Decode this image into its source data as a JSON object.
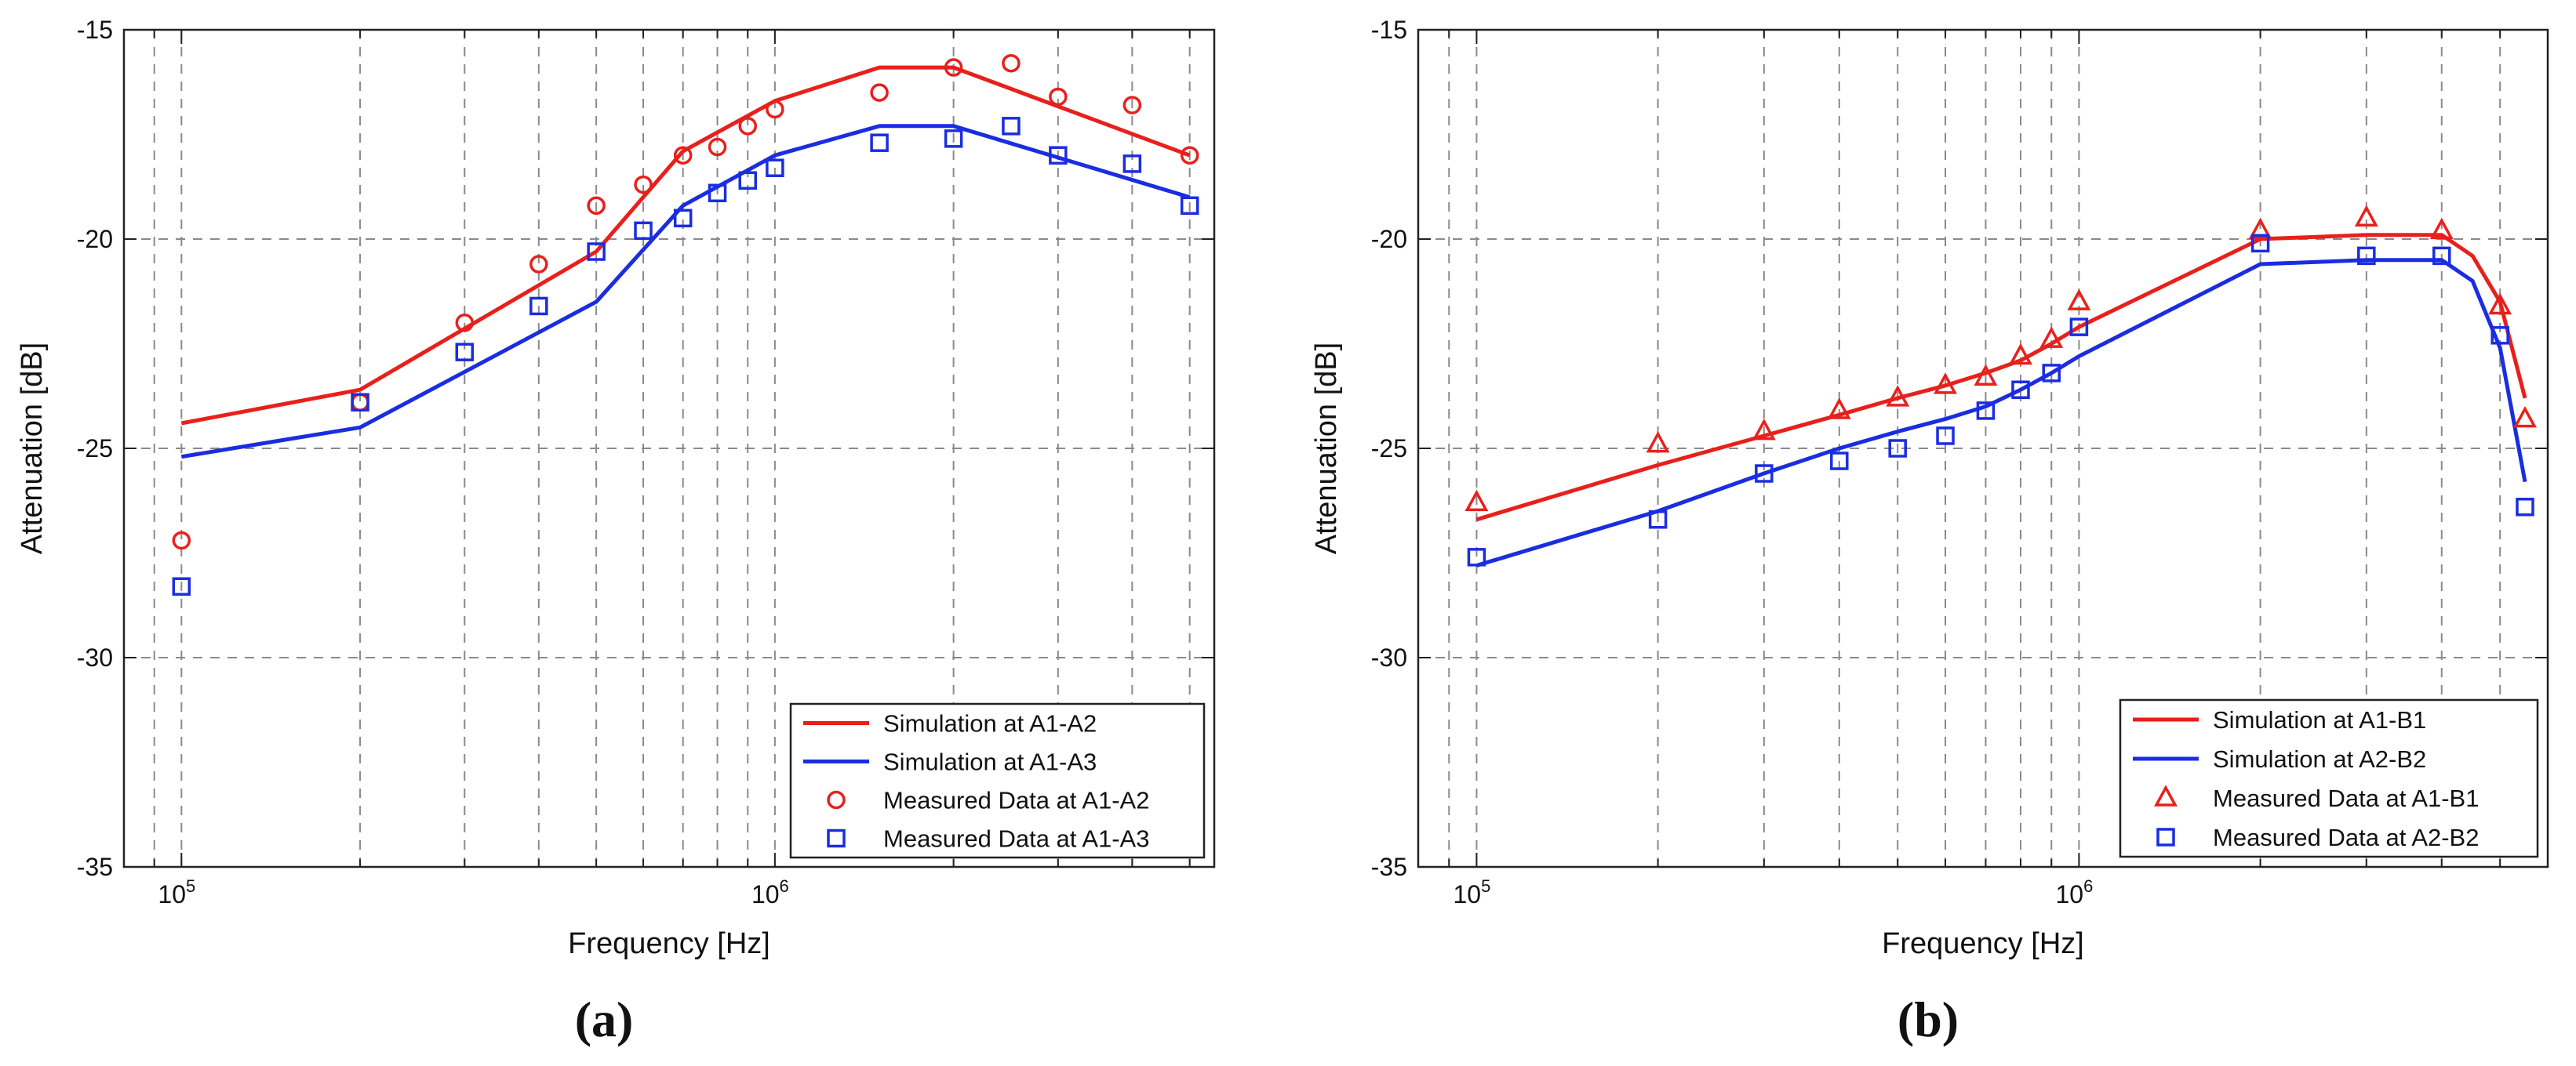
{
  "chart_data": [
    {
      "panel_label": "(a)",
      "type": "line",
      "xscale": "log",
      "xlabel": "Frequency [Hz]",
      "ylabel": "Attenuation [dB]",
      "xlim": [
        80000,
        5500000
      ],
      "ylim": [
        -35,
        -15
      ],
      "yticks": [
        -35,
        -30,
        -25,
        -20,
        -15
      ],
      "xticks": [
        {
          "base": "10",
          "exp": "5",
          "value": 100000
        },
        {
          "base": "10",
          "exp": "6",
          "value": 1000000
        }
      ],
      "grid": true,
      "legend_position": "bottom-right",
      "series": [
        {
          "name": "Simulation at A1-A2",
          "kind": "line",
          "color": "#e8201c",
          "x": [
            100000,
            200000,
            500000,
            700000,
            1000000,
            1500000,
            2000000,
            5000000
          ],
          "y": [
            -24.4,
            -23.6,
            -20.3,
            -17.9,
            -16.7,
            -15.9,
            -15.9,
            -18.0
          ]
        },
        {
          "name": "Simulation at A1-A3",
          "kind": "line",
          "color": "#1a2de0",
          "x": [
            100000,
            200000,
            500000,
            700000,
            1000000,
            1500000,
            2000000,
            5000000
          ],
          "y": [
            -25.2,
            -24.5,
            -21.5,
            -19.2,
            -18.0,
            -17.3,
            -17.3,
            -19.0
          ]
        },
        {
          "name": "Measured Data at A1-A2",
          "kind": "marker",
          "marker": "circle",
          "color": "#e8201c",
          "x": [
            100000,
            200000,
            300000,
            400000,
            500000,
            600000,
            700000,
            800000,
            900000,
            1000000,
            1500000,
            2000000,
            2500000,
            3000000,
            4000000,
            5000000
          ],
          "y": [
            -27.2,
            -23.9,
            -22.0,
            -20.6,
            -19.2,
            -18.7,
            -18.0,
            -17.8,
            -17.3,
            -16.9,
            -16.5,
            -15.9,
            -15.8,
            -16.6,
            -16.8,
            -18.0
          ]
        },
        {
          "name": "Measured Data at A1-A3",
          "kind": "marker",
          "marker": "square",
          "color": "#1a2de0",
          "x": [
            100000,
            200000,
            300000,
            400000,
            500000,
            600000,
            700000,
            800000,
            900000,
            1000000,
            1500000,
            2000000,
            2500000,
            3000000,
            4000000,
            5000000
          ],
          "y": [
            -28.3,
            -23.9,
            -22.7,
            -21.6,
            -20.3,
            -19.8,
            -19.5,
            -18.9,
            -18.6,
            -18.3,
            -17.7,
            -17.6,
            -17.3,
            -18.0,
            -18.2,
            -19.2
          ]
        }
      ]
    },
    {
      "panel_label": "(b)",
      "type": "line",
      "xscale": "log",
      "xlabel": "Frequency [Hz]",
      "ylabel": "Attenuation [dB]",
      "xlim": [
        80000,
        6000000
      ],
      "ylim": [
        -35,
        -15
      ],
      "yticks": [
        -35,
        -30,
        -25,
        -20,
        -15
      ],
      "xticks": [
        {
          "base": "10",
          "exp": "5",
          "value": 100000
        },
        {
          "base": "10",
          "exp": "6",
          "value": 1000000
        }
      ],
      "grid": true,
      "legend_position": "bottom-right",
      "series": [
        {
          "name": "Simulation at A1-B1",
          "kind": "line",
          "color": "#e8201c",
          "x": [
            100000,
            200000,
            300000,
            400000,
            500000,
            600000,
            700000,
            800000,
            900000,
            1000000,
            2000000,
            3000000,
            4000000,
            4500000,
            5000000,
            5500000
          ],
          "y": [
            -26.7,
            -25.4,
            -24.7,
            -24.2,
            -23.8,
            -23.5,
            -23.2,
            -22.9,
            -22.5,
            -22.1,
            -20.0,
            -19.9,
            -19.9,
            -20.4,
            -21.5,
            -23.8
          ]
        },
        {
          "name": "Simulation at A2-B2",
          "kind": "line",
          "color": "#1a2de0",
          "x": [
            100000,
            200000,
            300000,
            400000,
            500000,
            600000,
            700000,
            800000,
            900000,
            1000000,
            2000000,
            3000000,
            4000000,
            4500000,
            5000000,
            5500000
          ],
          "y": [
            -27.8,
            -26.5,
            -25.6,
            -25.0,
            -24.6,
            -24.3,
            -24.0,
            -23.6,
            -23.2,
            -22.8,
            -20.6,
            -20.5,
            -20.5,
            -21.0,
            -22.6,
            -25.8
          ]
        },
        {
          "name": "Measured Data at A1-B1",
          "kind": "marker",
          "marker": "triangle",
          "color": "#e8201c",
          "x": [
            100000,
            200000,
            300000,
            400000,
            500000,
            600000,
            700000,
            800000,
            900000,
            1000000,
            2000000,
            3000000,
            4000000,
            5000000,
            5500000
          ],
          "y": [
            -26.3,
            -24.9,
            -24.6,
            -24.1,
            -23.8,
            -23.5,
            -23.3,
            -22.8,
            -22.4,
            -21.5,
            -19.8,
            -19.5,
            -19.8,
            -21.6,
            -24.3
          ]
        },
        {
          "name": "Measured Data at A2-B2",
          "kind": "marker",
          "marker": "square",
          "color": "#1a2de0",
          "x": [
            100000,
            200000,
            300000,
            400000,
            500000,
            600000,
            700000,
            800000,
            900000,
            1000000,
            2000000,
            3000000,
            4000000,
            5000000,
            5500000
          ],
          "y": [
            -27.6,
            -26.7,
            -25.6,
            -25.3,
            -25.0,
            -24.7,
            -24.1,
            -23.6,
            -23.2,
            -22.1,
            -20.1,
            -20.4,
            -20.4,
            -22.3,
            -26.4
          ]
        }
      ]
    }
  ]
}
